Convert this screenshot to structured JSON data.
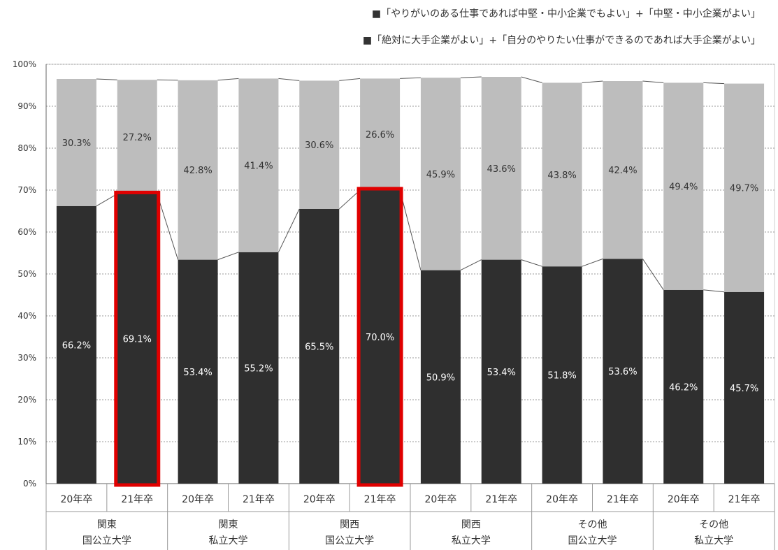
{
  "chart_data": {
    "type": "bar",
    "stacked": true,
    "categories": [
      {
        "year": "20年卒",
        "group": "関東\n国公立大学"
      },
      {
        "year": "21年卒",
        "group": "関東\n国公立大学"
      },
      {
        "year": "20年卒",
        "group": "関東\n私立大学"
      },
      {
        "year": "21年卒",
        "group": "関東\n私立大学"
      },
      {
        "year": "20年卒",
        "group": "関西\n国公立大学"
      },
      {
        "year": "21年卒",
        "group": "関西\n国公立大学"
      },
      {
        "year": "20年卒",
        "group": "関西\n私立大学"
      },
      {
        "year": "21年卒",
        "group": "関西\n私立大学"
      },
      {
        "year": "20年卒",
        "group": "その他\n国公立大学"
      },
      {
        "year": "21年卒",
        "group": "その他\n国公立大学"
      },
      {
        "year": "20年卒",
        "group": "その他\n私立大学"
      },
      {
        "year": "21年卒",
        "group": "その他\n私立大学"
      }
    ],
    "groups": [
      [
        "関東",
        "国公立大学"
      ],
      [
        "関東",
        "私立大学"
      ],
      [
        "関西",
        "国公立大学"
      ],
      [
        "関西",
        "私立大学"
      ],
      [
        "その他",
        "国公立大学"
      ],
      [
        "その他",
        "私立大学"
      ]
    ],
    "years": [
      "20年卒",
      "21年卒",
      "20年卒",
      "21年卒",
      "20年卒",
      "21年卒",
      "20年卒",
      "21年卒",
      "20年卒",
      "21年卒",
      "20年卒",
      "21年卒"
    ],
    "series": [
      {
        "name": "■「絶対に大手企業がよい」+「自分のやりたい仕事ができるのであれば大手企業がよい」",
        "color": "#2f2f2f",
        "label_color": "#ffffff",
        "values": [
          66.2,
          69.1,
          53.4,
          55.2,
          65.5,
          70.0,
          50.9,
          53.4,
          51.8,
          53.6,
          46.2,
          45.7
        ],
        "labels": [
          "66.2%",
          "69.1%",
          "53.4%",
          "55.2%",
          "65.5%",
          "70.0%",
          "50.9%",
          "53.4%",
          "51.8%",
          "53.6%",
          "46.2%",
          "45.7%"
        ]
      },
      {
        "name": "■「やりがいのある仕事であれば中堅・中小企業でもよい」+「中堅・中小企業がよい」",
        "color": "#bdbdbd",
        "label_color": "#333333",
        "values": [
          30.3,
          27.2,
          42.8,
          41.4,
          30.6,
          26.6,
          45.9,
          43.6,
          43.8,
          42.4,
          49.4,
          49.7
        ],
        "labels": [
          "30.3%",
          "27.2%",
          "42.8%",
          "41.4%",
          "30.6%",
          "26.6%",
          "45.9%",
          "43.6%",
          "43.8%",
          "42.4%",
          "49.4%",
          "49.7%"
        ]
      }
    ],
    "y_ticks": [
      "0%",
      "10%",
      "20%",
      "30%",
      "40%",
      "50%",
      "60%",
      "70%",
      "80%",
      "90%",
      "100%"
    ],
    "ylim": [
      0,
      100
    ],
    "highlighted_bars": [
      1,
      5
    ],
    "highlight_color": "#e00000",
    "legend_position": "top-right",
    "grid": true
  }
}
